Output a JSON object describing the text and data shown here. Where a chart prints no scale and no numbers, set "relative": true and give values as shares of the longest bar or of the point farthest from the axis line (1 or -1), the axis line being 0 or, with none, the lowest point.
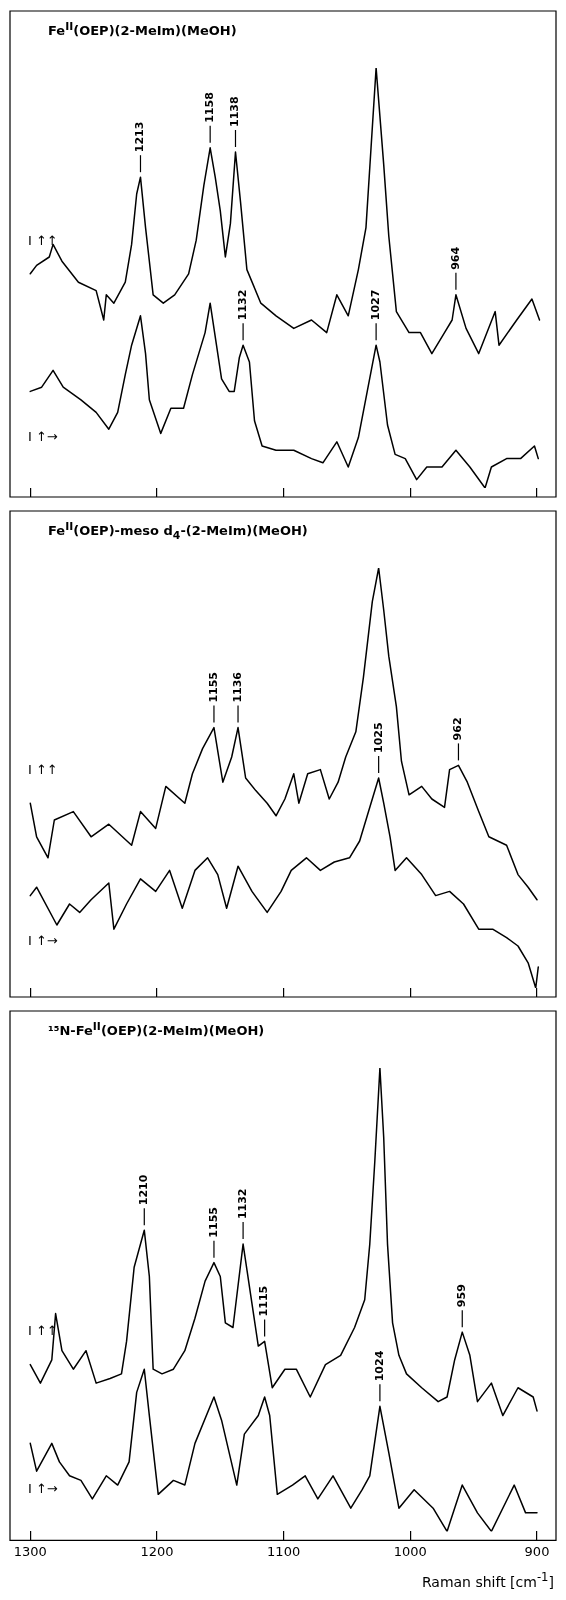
{
  "chart_data": [
    {
      "type": "line",
      "title": "Fe$^{II}$(OEP)(2-MeIm)(MeOH)",
      "relative": true,
      "legend": false,
      "grid": false,
      "marker": "none",
      "tick_labels": false,
      "xlim": [
        1316,
        885
      ],
      "xticks": [
        1300,
        1200,
        1100,
        1000,
        900
      ],
      "series": [
        {
          "name": "I ↑↑",
          "color": "#000000",
          "x": [
            1300,
            1295,
            1285,
            1282,
            1275,
            1262,
            1248,
            1242,
            1240,
            1234,
            1225,
            1220,
            1216,
            1213,
            1209,
            1203,
            1195,
            1186,
            1175,
            1169,
            1163,
            1158,
            1154,
            1150,
            1146,
            1142,
            1138,
            1134,
            1129,
            1118,
            1106,
            1092,
            1078,
            1066,
            1058,
            1049,
            1041,
            1035,
            1031,
            1027,
            1021,
            1017,
            1011,
            1001,
            992,
            983,
            973,
            967,
            964,
            956,
            946,
            933,
            930,
            916,
            904,
            898
          ],
          "values": [
            0.51,
            0.53,
            0.55,
            0.58,
            0.54,
            0.49,
            0.47,
            0.4,
            0.46,
            0.44,
            0.49,
            0.58,
            0.7,
            0.74,
            0.62,
            0.46,
            0.44,
            0.46,
            0.51,
            0.59,
            0.72,
            0.81,
            0.74,
            0.66,
            0.55,
            0.63,
            0.8,
            0.68,
            0.52,
            0.44,
            0.41,
            0.38,
            0.4,
            0.37,
            0.46,
            0.41,
            0.52,
            0.62,
            0.81,
            1.0,
            0.77,
            0.6,
            0.42,
            0.37,
            0.37,
            0.32,
            0.37,
            0.4,
            0.46,
            0.38,
            0.32,
            0.42,
            0.34,
            0.4,
            0.45,
            0.4
          ]
        },
        {
          "name": "I ↑→",
          "color": "#000000",
          "x": [
            1300,
            1291,
            1282,
            1274,
            1260,
            1248,
            1238,
            1231,
            1225,
            1220,
            1213,
            1209,
            1206,
            1197,
            1189,
            1179,
            1172,
            1162,
            1158,
            1153,
            1149,
            1143,
            1139,
            1135,
            1132,
            1127,
            1123,
            1117,
            1106,
            1092,
            1078,
            1069,
            1058,
            1049,
            1041,
            1034,
            1027,
            1024,
            1018,
            1012,
            1004,
            995,
            987,
            975,
            964,
            953,
            941,
            936,
            924,
            913,
            902,
            899
          ],
          "values": [
            0.23,
            0.24,
            0.28,
            0.24,
            0.21,
            0.18,
            0.14,
            0.18,
            0.27,
            0.34,
            0.41,
            0.32,
            0.21,
            0.13,
            0.19,
            0.19,
            0.27,
            0.37,
            0.44,
            0.34,
            0.26,
            0.23,
            0.23,
            0.31,
            0.34,
            0.3,
            0.16,
            0.1,
            0.09,
            0.09,
            0.07,
            0.06,
            0.11,
            0.05,
            0.12,
            0.23,
            0.34,
            0.3,
            0.15,
            0.08,
            0.07,
            0.02,
            0.05,
            0.05,
            0.09,
            0.05,
            0,
            0.05,
            0.07,
            0.07,
            0.1,
            0.07
          ]
        }
      ],
      "annotations": [
        {
          "text": "1213",
          "x": 1213,
          "y": 0.74
        },
        {
          "text": "1158",
          "x": 1158,
          "y": 0.81
        },
        {
          "text": "1138",
          "x": 1138,
          "y": 0.8
        },
        {
          "text": "1132",
          "x": 1132,
          "y": 0.34
        },
        {
          "text": "1027",
          "x": 1027,
          "y": 0.34
        },
        {
          "text": "964",
          "x": 964,
          "y": 0.46
        }
      ]
    },
    {
      "type": "line",
      "title": "Fe$^{II}$(OEP)-meso d$_{4}$-(2-MeIm)(MeOH)",
      "relative": true,
      "legend": false,
      "grid": false,
      "marker": "none",
      "tick_labels": false,
      "xlim": [
        1316,
        885
      ],
      "xticks": [
        1300,
        1200,
        1100,
        1000,
        900
      ],
      "series": [
        {
          "name": "I ↑↑",
          "color": "#000000",
          "x": [
            1300,
            1295,
            1286,
            1281,
            1266,
            1252,
            1238,
            1220,
            1213,
            1201,
            1193,
            1178,
            1172,
            1164,
            1155,
            1148,
            1141,
            1136,
            1130,
            1122,
            1113,
            1106,
            1099,
            1092,
            1088,
            1081,
            1071,
            1064,
            1057,
            1051,
            1043,
            1037,
            1030,
            1025,
            1021,
            1017,
            1011,
            1007,
            1001,
            991,
            983,
            973,
            969,
            962,
            955,
            946,
            938,
            924,
            915,
            907,
            900
          ],
          "values": [
            0.44,
            0.36,
            0.31,
            0.4,
            0.42,
            0.36,
            0.39,
            0.34,
            0.42,
            0.38,
            0.48,
            0.44,
            0.51,
            0.57,
            0.62,
            0.49,
            0.55,
            0.62,
            0.5,
            0.47,
            0.44,
            0.41,
            0.45,
            0.51,
            0.44,
            0.51,
            0.52,
            0.45,
            0.49,
            0.55,
            0.61,
            0.74,
            0.92,
            1.0,
            0.9,
            0.79,
            0.67,
            0.54,
            0.46,
            0.48,
            0.45,
            0.43,
            0.52,
            0.53,
            0.49,
            0.42,
            0.36,
            0.34,
            0.27,
            0.24,
            0.21
          ]
        },
        {
          "name": "I ↑→",
          "color": "#000000",
          "x": [
            1300,
            1295,
            1279,
            1269,
            1261,
            1252,
            1238,
            1234,
            1224,
            1213,
            1201,
            1190,
            1180,
            1170,
            1160,
            1152,
            1145,
            1136,
            1125,
            1113,
            1102,
            1094,
            1082,
            1071,
            1060,
            1048,
            1040,
            1034,
            1025,
            1021,
            1016,
            1012,
            1003,
            991,
            980,
            969,
            958,
            946,
            935,
            924,
            915,
            907,
            901,
            899
          ],
          "values": [
            0.22,
            0.24,
            0.15,
            0.2,
            0.18,
            0.21,
            0.25,
            0.14,
            0.2,
            0.26,
            0.23,
            0.28,
            0.19,
            0.28,
            0.31,
            0.27,
            0.19,
            0.29,
            0.23,
            0.18,
            0.23,
            0.28,
            0.31,
            0.28,
            0.3,
            0.31,
            0.35,
            0.41,
            0.5,
            0.44,
            0.36,
            0.28,
            0.31,
            0.27,
            0.22,
            0.23,
            0.2,
            0.14,
            0.14,
            0.12,
            0.1,
            0.06,
            0,
            0.05
          ]
        }
      ],
      "annotations": [
        {
          "text": "1155",
          "x": 1155,
          "y": 0.62
        },
        {
          "text": "1136",
          "x": 1136,
          "y": 0.62
        },
        {
          "text": "1025",
          "x": 1025,
          "y": 0.5
        },
        {
          "text": "962",
          "x": 962,
          "y": 0.53
        }
      ]
    },
    {
      "type": "line",
      "title": "¹⁵N-Fe$^{II}$(OEP)(2-MeIm)(MeOH)",
      "xlabel": "Raman shift [cm$^{-1}$]",
      "relative": true,
      "legend": false,
      "grid": false,
      "marker": "none",
      "xlim": [
        1316,
        885
      ],
      "xticks": [
        1300,
        1200,
        1100,
        1000,
        900
      ],
      "series": [
        {
          "name": "I ↑↑",
          "color": "#000000",
          "x": [
            1300,
            1292,
            1283,
            1280,
            1275,
            1266,
            1256,
            1248,
            1237,
            1228,
            1224,
            1218,
            1210,
            1206,
            1203,
            1196,
            1187,
            1178,
            1170,
            1162,
            1155,
            1150,
            1146,
            1140,
            1132,
            1126,
            1120,
            1115,
            1109,
            1099,
            1090,
            1079,
            1067,
            1055,
            1044,
            1036,
            1032,
            1028,
            1024,
            1021,
            1018,
            1014,
            1009,
            1003,
            991,
            978,
            971,
            965,
            959,
            953,
            947,
            936,
            927,
            915,
            903,
            900
          ],
          "values": [
            0.36,
            0.32,
            0.37,
            0.47,
            0.39,
            0.35,
            0.39,
            0.32,
            0.33,
            0.34,
            0.41,
            0.57,
            0.65,
            0.55,
            0.35,
            0.34,
            0.35,
            0.39,
            0.46,
            0.54,
            0.58,
            0.55,
            0.45,
            0.44,
            0.62,
            0.51,
            0.4,
            0.41,
            0.31,
            0.35,
            0.35,
            0.29,
            0.36,
            0.38,
            0.44,
            0.5,
            0.62,
            0.8,
            1.0,
            0.85,
            0.62,
            0.45,
            0.38,
            0.34,
            0.31,
            0.28,
            0.29,
            0.37,
            0.43,
            0.38,
            0.28,
            0.32,
            0.25,
            0.31,
            0.29,
            0.26
          ]
        },
        {
          "name": "I ↑→",
          "color": "#000000",
          "x": [
            1300,
            1295,
            1283,
            1277,
            1269,
            1260,
            1251,
            1240,
            1231,
            1222,
            1216,
            1210,
            1206,
            1199,
            1187,
            1178,
            1170,
            1155,
            1149,
            1143,
            1137,
            1131,
            1120,
            1115,
            1111,
            1105,
            1093,
            1083,
            1073,
            1061,
            1047,
            1038,
            1032,
            1024,
            1017,
            1009,
            997,
            982,
            971,
            959,
            947,
            936,
            918,
            909,
            900
          ],
          "values": [
            0.19,
            0.13,
            0.19,
            0.15,
            0.12,
            0.11,
            0.07,
            0.12,
            0.1,
            0.15,
            0.3,
            0.35,
            0.25,
            0.08,
            0.11,
            0.1,
            0.19,
            0.29,
            0.24,
            0.17,
            0.1,
            0.21,
            0.25,
            0.29,
            0.25,
            0.08,
            0.1,
            0.12,
            0.07,
            0.12,
            0.05,
            0.09,
            0.12,
            0.27,
            0.17,
            0.05,
            0.09,
            0.05,
            0,
            0.1,
            0.04,
            0,
            0.1,
            0.04,
            0.04
          ]
        }
      ],
      "annotations": [
        {
          "text": "1210",
          "x": 1210,
          "y": 0.65
        },
        {
          "text": "1155",
          "x": 1155,
          "y": 0.58
        },
        {
          "text": "1132",
          "x": 1132,
          "y": 0.62
        },
        {
          "text": "1115",
          "x": 1115,
          "y": 0.41
        },
        {
          "text": "1024",
          "x": 1024,
          "y": 0.27
        },
        {
          "text": "959",
          "x": 959,
          "y": 0.43
        }
      ]
    }
  ]
}
